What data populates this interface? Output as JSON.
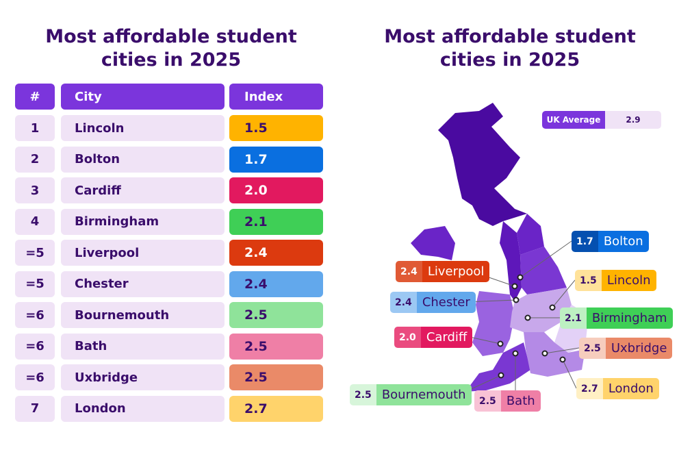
{
  "left_title": "Most affordable student cities in 2025",
  "right_title": "Most affordable student cities in 2025",
  "table": {
    "headers": [
      "#",
      "City",
      "Index"
    ],
    "rows": [
      {
        "rank": "1",
        "city": "Lincoln",
        "index": "1.5",
        "color": "#ffb300",
        "text": "#3a0d6b"
      },
      {
        "rank": "2",
        "city": "Bolton",
        "index": "1.7",
        "color": "#0a6fe0",
        "text": "#ffffff"
      },
      {
        "rank": "3",
        "city": "Cardiff",
        "index": "2.0",
        "color": "#e2195f",
        "text": "#ffffff"
      },
      {
        "rank": "4",
        "city": "Birmingham",
        "index": "2.1",
        "color": "#3fcf56",
        "text": "#3a0d6b"
      },
      {
        "rank": "=5",
        "city": "Liverpool",
        "index": "2.4",
        "color": "#dc3a0f",
        "text": "#ffffff"
      },
      {
        "rank": "=5",
        "city": "Chester",
        "index": "2.4",
        "color": "#62a8ec",
        "text": "#3a0d6b"
      },
      {
        "rank": "=6",
        "city": "Bournemouth",
        "index": "2.5",
        "color": "#8fe39a",
        "text": "#3a0d6b"
      },
      {
        "rank": "=6",
        "city": "Bath",
        "index": "2.5",
        "color": "#ef7fa6",
        "text": "#3a0d6b"
      },
      {
        "rank": "=6",
        "city": "Uxbridge",
        "index": "2.5",
        "color": "#ea8a68",
        "text": "#3a0d6b"
      },
      {
        "rank": "7",
        "city": "London",
        "index": "2.7",
        "color": "#ffd36b",
        "text": "#3a0d6b"
      }
    ]
  },
  "uk_average": {
    "label": "UK Average",
    "value": "2.9"
  },
  "map_labels": [
    {
      "city": "Bolton",
      "index": "1.7",
      "vbg": "#0550b0",
      "nbg": "#0a6fe0",
      "text": "#ffffff"
    },
    {
      "city": "Liverpool",
      "index": "2.4",
      "vbg": "#e05a35",
      "nbg": "#dc3a0f",
      "text": "#ffffff"
    },
    {
      "city": "Lincoln",
      "index": "1.5",
      "vbg": "#ffe29a",
      "nbg": "#ffb300",
      "text": "#3a0d6b"
    },
    {
      "city": "Chester",
      "index": "2.4",
      "vbg": "#9cc8f3",
      "nbg": "#62a8ec",
      "text": "#3a0d6b"
    },
    {
      "city": "Birmingham",
      "index": "2.1",
      "vbg": "#bdf0c2",
      "nbg": "#3fcf56",
      "text": "#3a0d6b"
    },
    {
      "city": "Cardiff",
      "index": "2.0",
      "vbg": "#ea4b7f",
      "nbg": "#e2195f",
      "text": "#ffffff"
    },
    {
      "city": "Uxbridge",
      "index": "2.5",
      "vbg": "#f6cdbd",
      "nbg": "#ea8a68",
      "text": "#3a0d6b"
    },
    {
      "city": "London",
      "index": "2.7",
      "vbg": "#fff0c4",
      "nbg": "#ffd36b",
      "text": "#3a0d6b"
    },
    {
      "city": "Bournemouth",
      "index": "2.5",
      "vbg": "#d7f5da",
      "nbg": "#8fe39a",
      "text": "#3a0d6b"
    },
    {
      "city": "Bath",
      "index": "2.5",
      "vbg": "#f8c2d5",
      "nbg": "#ef7fa6",
      "text": "#3a0d6b"
    }
  ]
}
